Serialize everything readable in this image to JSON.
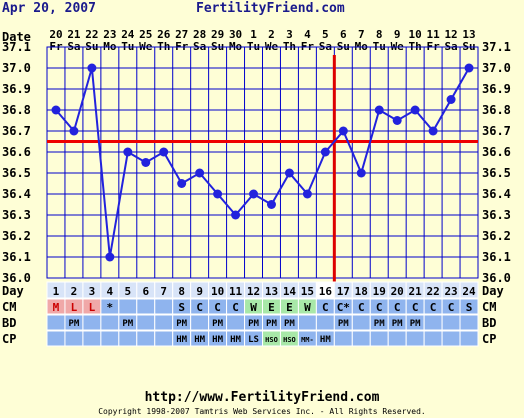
{
  "header": {
    "date": "Apr 20, 2007",
    "site": "FertilityFriend.com"
  },
  "footer": {
    "url": "http://www.FertilityFriend.com",
    "copyright": "Copyright 1998-2007 Tamtris Web Services Inc. - All Rights Reserved."
  },
  "colors": {
    "background": "#fefed6",
    "grid_blue": "#0000cc",
    "temp_line": "#2222dd",
    "coverline": "#ee0000",
    "ovulation_line": "#dd0000",
    "menses_cell": "#f0a8a8",
    "cm_fertile": "#a8e8a8",
    "row_blue": "#8fb4ee",
    "day_row": "#d8e4f8"
  },
  "chart_data": {
    "type": "line",
    "title": "",
    "xlabel": "Day",
    "ylabel": "",
    "ylim": [
      36.0,
      37.1
    ],
    "yticks": [
      "37.1",
      "37.0",
      "36.9",
      "36.8",
      "36.7",
      "36.6",
      "36.5",
      "36.4",
      "36.3",
      "36.2",
      "36.1",
      "36.0"
    ],
    "row_labels": {
      "date": "Date",
      "day": "Day",
      "cm": "CM",
      "bd": "BD",
      "cp": "CP"
    },
    "dates": [
      "20",
      "21",
      "22",
      "23",
      "24",
      "25",
      "26",
      "27",
      "28",
      "29",
      "30",
      "1",
      "2",
      "3",
      "4",
      "5",
      "6",
      "7",
      "8",
      "9",
      "10",
      "11",
      "12",
      "13"
    ],
    "weekdays": [
      "Fr",
      "Sa",
      "Su",
      "Mo",
      "Tu",
      "We",
      "Th",
      "Fr",
      "Sa",
      "Su",
      "Mo",
      "Tu",
      "We",
      "Th",
      "Fr",
      "Sa",
      "Su",
      "Mo",
      "Tu",
      "We",
      "Th",
      "Fr",
      "Sa",
      "Su"
    ],
    "days": [
      "1",
      "2",
      "3",
      "4",
      "5",
      "6",
      "7",
      "8",
      "9",
      "10",
      "11",
      "12",
      "13",
      "14",
      "15",
      "16",
      "17",
      "18",
      "19",
      "20",
      "21",
      "22",
      "23",
      "24"
    ],
    "temps": [
      36.8,
      36.7,
      37.0,
      36.1,
      36.6,
      36.55,
      36.6,
      36.45,
      36.5,
      36.4,
      36.3,
      36.4,
      36.35,
      36.5,
      36.4,
      36.6,
      36.7,
      36.5,
      36.8,
      36.75,
      36.8,
      36.7,
      36.85,
      37.0
    ],
    "coverline": 36.65,
    "ovulation_day": 16,
    "menses": [
      "M",
      "L",
      "L",
      "",
      "",
      "",
      "",
      "",
      "",
      "",
      "",
      "",
      "",
      "",
      "",
      "",
      "",
      "",
      "",
      "",
      "",
      "",
      "",
      ""
    ],
    "cm": [
      "",
      "",
      "",
      "*",
      "",
      "",
      "",
      "S",
      "C",
      "C",
      "C",
      "W",
      "E",
      "E",
      "W",
      "C",
      "C*",
      "C",
      "C",
      "C",
      "C",
      "C",
      "C",
      "S"
    ],
    "cm_fertile_days": [
      12,
      13,
      14,
      15
    ],
    "bd": [
      "",
      "PM",
      "",
      "",
      "PM",
      "",
      "",
      "PM",
      "",
      "PM",
      "",
      "PM",
      "PM",
      "PM",
      "",
      "",
      "PM",
      "",
      "PM",
      "PM",
      "PM",
      "",
      "",
      ""
    ],
    "cp": [
      "",
      "",
      "",
      "",
      "",
      "",
      "",
      "HM",
      "HM",
      "HM",
      "HM",
      "LS",
      "HSO",
      "HSO",
      "MM-",
      "HM",
      "",
      "",
      "",
      "",
      "",
      "",
      "",
      ""
    ],
    "cp_fertile_days": [
      13,
      14
    ]
  }
}
